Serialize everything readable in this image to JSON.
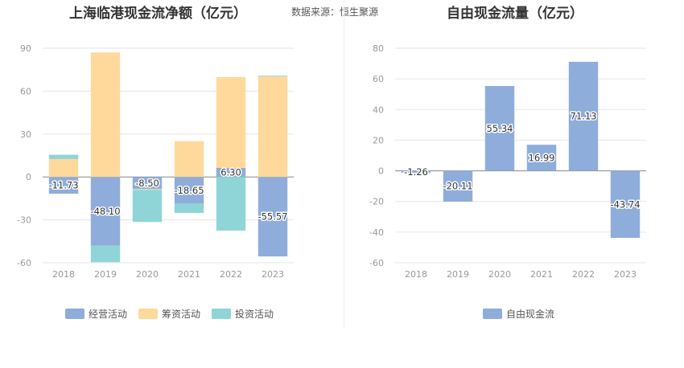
{
  "header": {
    "left_title": "上海临港现金流净额（亿元）",
    "source": "数据来源：恒生聚源",
    "right_title": "自由现金流量（亿元）"
  },
  "chart_data": [
    {
      "type": "bar",
      "stacked": true,
      "title": "上海临港现金流净额（亿元）",
      "categories": [
        "2018",
        "2019",
        "2020",
        "2021",
        "2022",
        "2023"
      ],
      "ylim": [
        -60,
        90
      ],
      "yticks": [
        90,
        60,
        30,
        0,
        -30,
        -60
      ],
      "grid": true,
      "legend_position": "bottom",
      "series": [
        {
          "name": "经营活动",
          "color": "#8eaddb",
          "values": [
            -11.73,
            -48.1,
            -8.5,
            -18.65,
            6.3,
            -55.57
          ],
          "labels": [
            "-11.73",
            "-48.10",
            "-8.50",
            "-18.65",
            "6.30",
            "-55.57"
          ]
        },
        {
          "name": "筹资活动",
          "color": "#ffd99c",
          "values": [
            12.5,
            87.0,
            -0.5,
            25.0,
            63.5,
            70.3
          ]
        },
        {
          "name": "投资活动",
          "color": "#8fd5d8",
          "values": [
            3.0,
            -11.5,
            -22.5,
            -6.5,
            -37.5,
            0.5
          ]
        }
      ]
    },
    {
      "type": "bar",
      "title": "自由现金流量（亿元）",
      "categories": [
        "2018",
        "2019",
        "2020",
        "2021",
        "2022",
        "2023"
      ],
      "ylim": [
        -60,
        80
      ],
      "yticks": [
        80,
        60,
        40,
        20,
        0,
        -20,
        -40,
        -60
      ],
      "grid": true,
      "legend_position": "bottom",
      "series": [
        {
          "name": "自由现金流",
          "color": "#8eaddb",
          "values": [
            -1.26,
            -20.11,
            55.34,
            16.99,
            71.13,
            -43.74
          ],
          "labels": [
            "-1.26",
            "-20.11",
            "55.34",
            "16.99",
            "71.13",
            "-43.74"
          ]
        }
      ]
    }
  ]
}
